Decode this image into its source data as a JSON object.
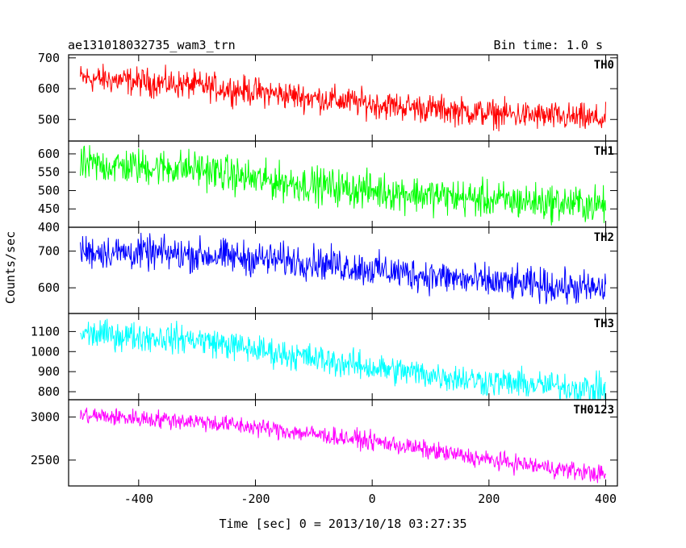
{
  "header": {
    "title": "ae131018032735_wam3_trn",
    "bin_time": "Bin time: 1.0 s"
  },
  "chart_data": {
    "type": "line",
    "xlabel": "Time [sec] 0 = 2013/10/18 03:27:35",
    "ylabel": "Counts/sec",
    "xlim": [
      -520,
      420
    ],
    "xticks": [
      -400,
      -200,
      0,
      200,
      400
    ],
    "x_range": [
      -500,
      400
    ],
    "bin_time_s": 1.0,
    "panels": [
      {
        "name": "TH0",
        "color": "#ff0000",
        "ylim": [
          430,
          710
        ],
        "yticks": [
          500,
          600,
          700
        ],
        "trend": [
          [
            -500,
            635
          ],
          [
            -300,
            610
          ],
          [
            -200,
            590
          ],
          [
            0,
            550
          ],
          [
            200,
            520
          ],
          [
            400,
            500
          ]
        ],
        "noise_amplitude": 35
      },
      {
        "name": "TH1",
        "color": "#00ff00",
        "ylim": [
          400,
          635
        ],
        "yticks": [
          400,
          450,
          500,
          550,
          600
        ],
        "trend": [
          [
            -500,
            570
          ],
          [
            -300,
            560
          ],
          [
            -200,
            530
          ],
          [
            0,
            500
          ],
          [
            200,
            475
          ],
          [
            400,
            460
          ]
        ],
        "noise_amplitude": 38
      },
      {
        "name": "TH2",
        "color": "#0000ff",
        "ylim": [
          530,
          765
        ],
        "yticks": [
          600,
          700
        ],
        "trend": [
          [
            -500,
            700
          ],
          [
            -300,
            690
          ],
          [
            -100,
            670
          ],
          [
            0,
            650
          ],
          [
            200,
            615
          ],
          [
            400,
            595
          ]
        ],
        "noise_amplitude": 35
      },
      {
        "name": "TH3",
        "color": "#00ffff",
        "ylim": [
          760,
          1190
        ],
        "yticks": [
          800,
          900,
          1000,
          1100
        ],
        "trend": [
          [
            -500,
            1090
          ],
          [
            -300,
            1060
          ],
          [
            -200,
            1010
          ],
          [
            0,
            920
          ],
          [
            200,
            850
          ],
          [
            400,
            810
          ]
        ],
        "noise_amplitude": 55
      },
      {
        "name": "TH0123",
        "color": "#ff00ff",
        "ylim": [
          2200,
          3200
        ],
        "yticks": [
          2500,
          3000
        ],
        "trend": [
          [
            -500,
            3020
          ],
          [
            -300,
            2950
          ],
          [
            -200,
            2880
          ],
          [
            0,
            2720
          ],
          [
            200,
            2500
          ],
          [
            400,
            2330
          ]
        ],
        "noise_amplitude": 80
      }
    ]
  }
}
